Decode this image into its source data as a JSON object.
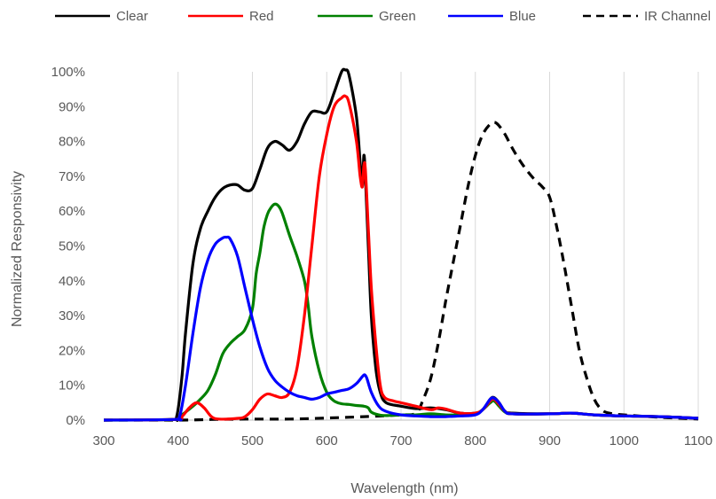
{
  "chart_data": {
    "type": "line",
    "title": "",
    "xlabel": "Wavelength (nm)",
    "ylabel": "Normalized Responsivity",
    "xlim": [
      300,
      1100
    ],
    "ylim": [
      0,
      100
    ],
    "x_ticks": [
      "300",
      "400",
      "500",
      "600",
      "700",
      "800",
      "900",
      "1000",
      "1100"
    ],
    "y_ticks": [
      "0%",
      "10%",
      "20%",
      "30%",
      "40%",
      "50%",
      "60%",
      "70%",
      "80%",
      "90%",
      "100%"
    ],
    "grid": "vertical",
    "legend_position": "top",
    "series": [
      {
        "name": "Clear",
        "color": "#000000",
        "dash": "solid",
        "points": [
          [
            300,
            0
          ],
          [
            390,
            0.2
          ],
          [
            398,
            1
          ],
          [
            405,
            12
          ],
          [
            410,
            25
          ],
          [
            420,
            45
          ],
          [
            430,
            55
          ],
          [
            440,
            60
          ],
          [
            450,
            64
          ],
          [
            460,
            66.5
          ],
          [
            470,
            67.5
          ],
          [
            480,
            67.5
          ],
          [
            490,
            66
          ],
          [
            500,
            66.5
          ],
          [
            510,
            72
          ],
          [
            520,
            78
          ],
          [
            530,
            80
          ],
          [
            540,
            79
          ],
          [
            550,
            77.5
          ],
          [
            560,
            80
          ],
          [
            570,
            85
          ],
          [
            580,
            88.5
          ],
          [
            590,
            88.5
          ],
          [
            600,
            88.5
          ],
          [
            610,
            94
          ],
          [
            620,
            100
          ],
          [
            625,
            100.5
          ],
          [
            630,
            99
          ],
          [
            640,
            87
          ],
          [
            645,
            74
          ],
          [
            648,
            67
          ],
          [
            650,
            76
          ],
          [
            652,
            70
          ],
          [
            656,
            50
          ],
          [
            660,
            30
          ],
          [
            666,
            15
          ],
          [
            672,
            8
          ],
          [
            680,
            5
          ],
          [
            700,
            4
          ],
          [
            720,
            3.3
          ],
          [
            740,
            3.5
          ],
          [
            760,
            3
          ],
          [
            780,
            2
          ],
          [
            800,
            2
          ],
          [
            810,
            3
          ],
          [
            820,
            6
          ],
          [
            825,
            6.5
          ],
          [
            832,
            5
          ],
          [
            840,
            2.5
          ],
          [
            850,
            2
          ],
          [
            900,
            1.8
          ],
          [
            930,
            2
          ],
          [
            960,
            1.5
          ],
          [
            1000,
            1.2
          ],
          [
            1050,
            1
          ],
          [
            1100,
            0.5
          ]
        ]
      },
      {
        "name": "Red",
        "color": "#ff0000",
        "dash": "solid",
        "points": [
          [
            300,
            0
          ],
          [
            395,
            0.2
          ],
          [
            405,
            1
          ],
          [
            415,
            3.5
          ],
          [
            425,
            5
          ],
          [
            435,
            3.5
          ],
          [
            445,
            1
          ],
          [
            455,
            0.3
          ],
          [
            480,
            0.5
          ],
          [
            490,
            1
          ],
          [
            500,
            3
          ],
          [
            510,
            6
          ],
          [
            520,
            7.5
          ],
          [
            530,
            7
          ],
          [
            540,
            6.5
          ],
          [
            550,
            8
          ],
          [
            560,
            15
          ],
          [
            570,
            30
          ],
          [
            580,
            50
          ],
          [
            590,
            70
          ],
          [
            600,
            82
          ],
          [
            610,
            90
          ],
          [
            620,
            92.5
          ],
          [
            625,
            93
          ],
          [
            630,
            91
          ],
          [
            640,
            80
          ],
          [
            645,
            70
          ],
          [
            648,
            67
          ],
          [
            650,
            73
          ],
          [
            652,
            72
          ],
          [
            656,
            55
          ],
          [
            660,
            38
          ],
          [
            666,
            22
          ],
          [
            672,
            10
          ],
          [
            678,
            6.5
          ],
          [
            690,
            5.5
          ],
          [
            700,
            5
          ],
          [
            720,
            4
          ],
          [
            740,
            3
          ],
          [
            750,
            3.5
          ],
          [
            760,
            3.2
          ],
          [
            780,
            2
          ],
          [
            800,
            2
          ],
          [
            810,
            3
          ],
          [
            820,
            5.5
          ],
          [
            825,
            6
          ],
          [
            832,
            4.5
          ],
          [
            840,
            2.5
          ],
          [
            850,
            1.8
          ],
          [
            900,
            1.8
          ],
          [
            930,
            2
          ],
          [
            960,
            1.5
          ],
          [
            1000,
            1.2
          ],
          [
            1050,
            1
          ],
          [
            1100,
            0.5
          ]
        ]
      },
      {
        "name": "Green",
        "color": "#008000",
        "dash": "solid",
        "points": [
          [
            300,
            0
          ],
          [
            395,
            0.2
          ],
          [
            405,
            1.5
          ],
          [
            420,
            4
          ],
          [
            430,
            6
          ],
          [
            440,
            8.5
          ],
          [
            450,
            13
          ],
          [
            460,
            19
          ],
          [
            470,
            22
          ],
          [
            480,
            24
          ],
          [
            490,
            26
          ],
          [
            500,
            32
          ],
          [
            505,
            42
          ],
          [
            510,
            48
          ],
          [
            515,
            55
          ],
          [
            520,
            59
          ],
          [
            525,
            61
          ],
          [
            530,
            62
          ],
          [
            535,
            61.5
          ],
          [
            540,
            59.5
          ],
          [
            550,
            53
          ],
          [
            560,
            47
          ],
          [
            570,
            40
          ],
          [
            575,
            33
          ],
          [
            580,
            24
          ],
          [
            590,
            14
          ],
          [
            600,
            8
          ],
          [
            610,
            5.5
          ],
          [
            620,
            4.7
          ],
          [
            630,
            4.5
          ],
          [
            640,
            4.2
          ],
          [
            650,
            4
          ],
          [
            656,
            3.5
          ],
          [
            660,
            2.3
          ],
          [
            670,
            1.5
          ],
          [
            680,
            1.3
          ],
          [
            700,
            1.5
          ],
          [
            720,
            1.5
          ],
          [
            740,
            1.8
          ],
          [
            760,
            1.5
          ],
          [
            780,
            1.5
          ],
          [
            800,
            1.8
          ],
          [
            810,
            3
          ],
          [
            820,
            5
          ],
          [
            825,
            5.5
          ],
          [
            832,
            4
          ],
          [
            840,
            2.3
          ],
          [
            850,
            1.8
          ],
          [
            900,
            1.8
          ],
          [
            930,
            2
          ],
          [
            960,
            1.5
          ],
          [
            1000,
            1.2
          ],
          [
            1050,
            1
          ],
          [
            1100,
            0.5
          ]
        ]
      },
      {
        "name": "Blue",
        "color": "#0000ff",
        "dash": "solid",
        "points": [
          [
            300,
            0
          ],
          [
            395,
            0.2
          ],
          [
            402,
            1
          ],
          [
            410,
            10
          ],
          [
            420,
            25
          ],
          [
            430,
            38
          ],
          [
            440,
            46
          ],
          [
            450,
            50.5
          ],
          [
            460,
            52.3
          ],
          [
            465,
            52.5
          ],
          [
            470,
            52
          ],
          [
            480,
            47
          ],
          [
            490,
            38
          ],
          [
            500,
            29
          ],
          [
            510,
            21
          ],
          [
            520,
            15
          ],
          [
            530,
            11.5
          ],
          [
            540,
            9.5
          ],
          [
            550,
            8
          ],
          [
            560,
            7
          ],
          [
            570,
            6.5
          ],
          [
            580,
            6
          ],
          [
            590,
            6.5
          ],
          [
            600,
            7.5
          ],
          [
            610,
            8
          ],
          [
            620,
            8.5
          ],
          [
            630,
            9
          ],
          [
            640,
            10.5
          ],
          [
            648,
            12.5
          ],
          [
            651,
            13
          ],
          [
            654,
            12
          ],
          [
            660,
            8
          ],
          [
            670,
            4
          ],
          [
            680,
            2.5
          ],
          [
            700,
            1.5
          ],
          [
            720,
            1.2
          ],
          [
            740,
            1
          ],
          [
            760,
            1
          ],
          [
            780,
            1.2
          ],
          [
            800,
            1.5
          ],
          [
            810,
            3
          ],
          [
            820,
            6
          ],
          [
            825,
            6.3
          ],
          [
            832,
            5
          ],
          [
            840,
            2.5
          ],
          [
            850,
            1.8
          ],
          [
            900,
            1.8
          ],
          [
            930,
            2
          ],
          [
            960,
            1.5
          ],
          [
            1000,
            1.2
          ],
          [
            1050,
            1
          ],
          [
            1100,
            0.5
          ]
        ]
      },
      {
        "name": "IR Channel",
        "color": "#000000",
        "dash": "dashed",
        "points": [
          [
            300,
            0
          ],
          [
            400,
            0
          ],
          [
            450,
            0.2
          ],
          [
            500,
            0.3
          ],
          [
            550,
            0.3
          ],
          [
            600,
            0.6
          ],
          [
            650,
            1
          ],
          [
            700,
            1.5
          ],
          [
            720,
            2
          ],
          [
            730,
            6
          ],
          [
            740,
            12
          ],
          [
            750,
            22
          ],
          [
            760,
            34
          ],
          [
            770,
            45
          ],
          [
            780,
            56
          ],
          [
            790,
            67
          ],
          [
            800,
            76
          ],
          [
            810,
            82
          ],
          [
            820,
            85
          ],
          [
            826,
            85.5
          ],
          [
            832,
            84.5
          ],
          [
            840,
            82
          ],
          [
            850,
            78
          ],
          [
            860,
            74.5
          ],
          [
            870,
            71.5
          ],
          [
            880,
            69
          ],
          [
            890,
            67
          ],
          [
            900,
            64
          ],
          [
            910,
            55
          ],
          [
            920,
            44
          ],
          [
            930,
            32
          ],
          [
            940,
            20
          ],
          [
            950,
            12
          ],
          [
            960,
            6
          ],
          [
            970,
            3
          ],
          [
            980,
            2
          ],
          [
            1000,
            1.5
          ],
          [
            1050,
            0.8
          ],
          [
            1100,
            0.3
          ]
        ]
      }
    ]
  }
}
